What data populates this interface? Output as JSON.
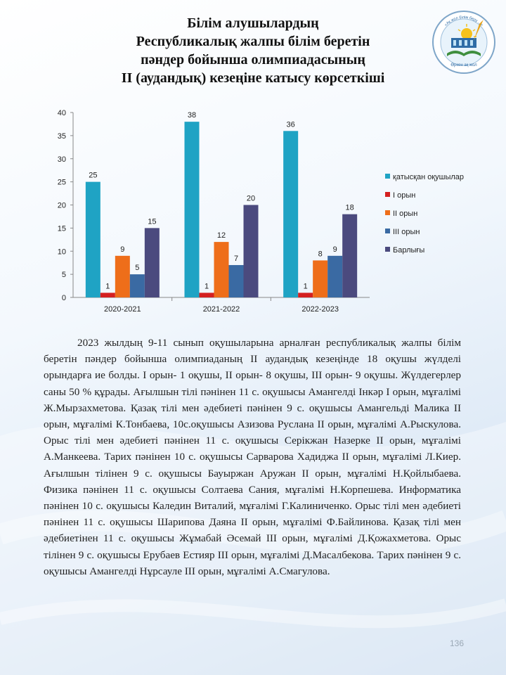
{
  "title": {
    "line1": "Білім алушылардың",
    "line2": "Республикалық  жалпы білім беретін",
    "line3": "пәндер бойынша олимпиадасының",
    "line4": "ІІ  (аудандық) кезеңіне катысу көрсеткіші"
  },
  "logo": {
    "icon": "school-emblem-icon",
    "arc_text": "«Ақ жол білім беру ...»",
    "bottom_text": "Өркен ақ жол"
  },
  "colors": {
    "participants": "#1fa3c4",
    "first_place": "#d42020",
    "second_place": "#ee6e1a",
    "third_place": "#3a6aa3",
    "total": "#4b4a7e"
  },
  "chart_data": {
    "type": "bar",
    "categories": [
      "2020-2021",
      "2021-2022",
      "2022-2023"
    ],
    "series": [
      {
        "name": "қатысқан оқушылар",
        "values": [
          25,
          38,
          36
        ]
      },
      {
        "name": "I орын",
        "values": [
          1,
          1,
          1
        ]
      },
      {
        "name": "II орын",
        "values": [
          9,
          12,
          8
        ]
      },
      {
        "name": "III орын",
        "values": [
          5,
          7,
          9
        ]
      },
      {
        "name": "Барлығы",
        "values": [
          15,
          20,
          18
        ]
      }
    ],
    "ylim": [
      0,
      40
    ],
    "yticks": [
      "0",
      "5",
      "10",
      "15",
      "20",
      "25",
      "30",
      "35",
      "40"
    ],
    "legend_position": "right",
    "grid": false,
    "data_labels": true
  },
  "body_text": "2023 жылдың 9-11 сынып оқушыларына арналған республикалық жалпы білім беретін пәндер бойынша олимпиаданың ІІ аудандық кезеңінде 18 оқушы жүлделі орындарға ие болды. I орын- 1 оқушы, ІІ орын- 8 оқушы, ІІІ орын- 9 оқушы. Жүлдегерлер саны 50 % құрады. Ағылшын тілі пәнінен 11 с. оқушысы Амангелді Інкәр І орын, мұғалімі Ж.Мырзахметова. Қазақ тілі мен әдебиеті пәнінен 9 с. оқушысы Амангельді Малика ІІ орын, мұғалімі К.Тонбаева, 10с.оқушысы Азизова Руслана ІІ орын, мұғалімі А.Рыскулова. Орыс тілі мен әдебиеті пәнінен 11 с. оқушысы Серікжан Назерке ІІ орын, мұғалімі А.Манкеева. Тарих пәнінен 10 с. оқушысы Сарварова Хадиджа ІІ орын, мұғалімі Л.Киер. Ағылшын тілінен 9 с. оқушысы Бауыржан Аружан ІІ орын, мұғалімі Н.Қойлыбаева. Физика пәнінен 11 с. оқушысы Солтаева Сания, мұғалімі Н.Корпешева. Информатика пәнінен 10 с. оқушысы Каледин Виталий, мұғалімі Г.Калиниченко. Орыс тілі мен әдебиеті пәнінен 11 с. оқушысы Шарипова Даяна ІІ орын, мұғалімі Ф.Байлинова. Қазақ тілі мен әдебиетінен 11 с. оқушысы Жұмабай Әсемай ІІІ орын, мұғалімі Д.Қожахметова. Орыс тілінен 9 с. оқушысы Ерубаев Естияр ІІІ орын, мұғалімі Д.Масалбекова. Тарих пәнінен 9 с. оқушысы Амангелді Нұрсауле ІІІ орын, мұғалімі А.Смагулова.",
  "page_number": "136"
}
